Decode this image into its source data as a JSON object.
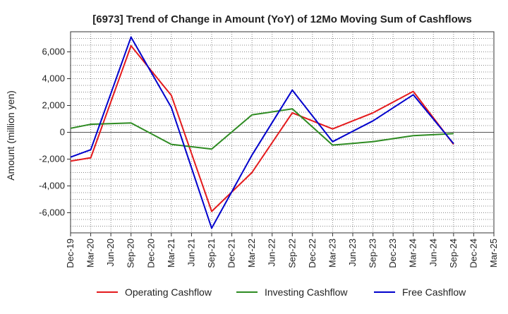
{
  "chart_data": {
    "type": "line",
    "title": "[6973]  Trend of Change in Amount (YoY) of 12Mo Moving Sum of Cashflows",
    "xlabel": "",
    "ylabel": "Amount (million yen)",
    "categories": [
      "Dec-19",
      "Mar-20",
      "Jun-20",
      "Sep-20",
      "Dec-20",
      "Mar-21",
      "Jun-21",
      "Sep-21",
      "Dec-21",
      "Mar-22",
      "Jun-22",
      "Sep-22",
      "Dec-22",
      "Mar-23",
      "Jun-23",
      "Sep-23",
      "Dec-23",
      "Mar-24",
      "Jun-24",
      "Sep-24",
      "Dec-24",
      "Mar-25"
    ],
    "ylim": [
      -7500,
      7500
    ],
    "yticks": [
      -6000,
      -4000,
      -2000,
      0,
      2000,
      4000,
      6000
    ],
    "ytick_labels": [
      "-6,000",
      "-4,000",
      "-2,000",
      "0",
      "2,000",
      "4,000",
      "6,000"
    ],
    "series": [
      {
        "name": "Operating Cashflow",
        "color": "#e41a1c",
        "values": [
          -2150,
          -1900,
          null,
          6450,
          null,
          2750,
          null,
          -5900,
          null,
          -3000,
          null,
          1450,
          null,
          250,
          null,
          1450,
          null,
          3050,
          null,
          -900,
          null,
          null
        ]
      },
      {
        "name": "Investing Cashflow",
        "color": "#2e8b22",
        "values": [
          300,
          600,
          null,
          700,
          null,
          -900,
          null,
          -1250,
          null,
          1300,
          null,
          1750,
          null,
          -950,
          null,
          -700,
          null,
          -250,
          null,
          -100,
          null,
          null
        ]
      },
      {
        "name": "Free Cashflow",
        "color": "#0000cc",
        "values": [
          -1850,
          -1300,
          null,
          7100,
          null,
          1850,
          null,
          -7150,
          null,
          -1700,
          null,
          3150,
          null,
          -700,
          null,
          850,
          null,
          2800,
          null,
          -850,
          null,
          null
        ]
      }
    ],
    "grid": true,
    "legend_position": "bottom"
  }
}
